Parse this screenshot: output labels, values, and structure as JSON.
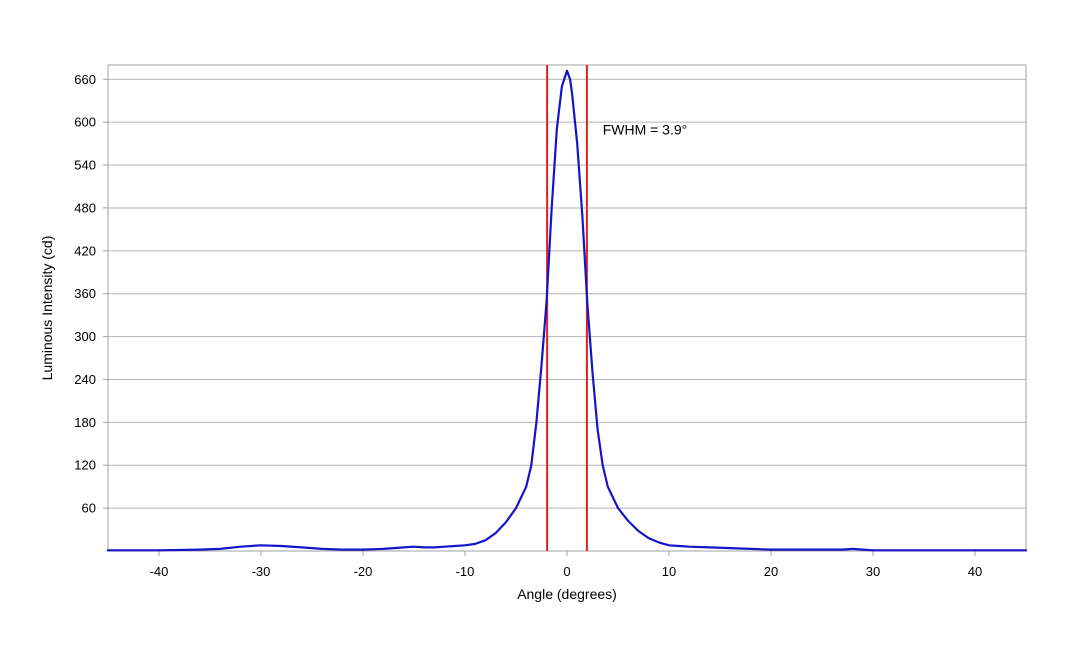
{
  "chart_data": {
    "type": "line",
    "title": "",
    "xlabel": "Angle (degrees)",
    "ylabel": "Luminous Intensity (cd)",
    "xlim": [
      -45,
      45
    ],
    "ylim": [
      0,
      680
    ],
    "x_ticks": [
      -40,
      -30,
      -20,
      -10,
      0,
      10,
      20,
      30,
      40
    ],
    "x_tick_labels": [
      "-40",
      "-30",
      "-20",
      "-10",
      "0",
      "10",
      "20",
      "30",
      "40"
    ],
    "y_ticks": [
      60,
      120,
      180,
      240,
      300,
      360,
      420,
      480,
      540,
      600,
      660
    ],
    "y_tick_labels": [
      "60",
      "120",
      "180",
      "240",
      "300",
      "360",
      "420",
      "480",
      "540",
      "600",
      "660"
    ],
    "grid": "horizontal",
    "legend": "none",
    "series": [
      {
        "color": "#1515c8",
        "x": [
          -45,
          -40,
          -36,
          -34,
          -32,
          -30,
          -28,
          -26,
          -24,
          -22,
          -20,
          -18,
          -17,
          -16,
          -15,
          -14,
          -13,
          -12,
          -11,
          -10,
          -9,
          -8,
          -7,
          -6,
          -5,
          -4,
          -3.5,
          -3,
          -2.5,
          -2,
          -1.5,
          -1,
          -0.5,
          0,
          0.3,
          0.5,
          1,
          1.5,
          2,
          2.5,
          3,
          3.5,
          4,
          5,
          6,
          7,
          8,
          9,
          10,
          11,
          12,
          14,
          16,
          18,
          20,
          22,
          24,
          26,
          27,
          28,
          29,
          30,
          35,
          40,
          45
        ],
        "y": [
          1,
          1,
          2,
          3,
          6,
          8,
          7,
          5,
          3,
          2,
          2,
          3,
          4,
          5,
          6,
          5,
          5,
          6,
          7,
          8,
          10,
          15,
          25,
          40,
          60,
          90,
          120,
          180,
          260,
          350,
          480,
          590,
          650,
          672,
          660,
          640,
          570,
          470,
          345,
          250,
          170,
          120,
          90,
          60,
          42,
          28,
          18,
          12,
          8,
          7,
          6,
          5,
          4,
          3,
          2,
          2,
          2,
          2,
          2,
          3,
          2,
          1,
          1,
          1,
          1
        ]
      }
    ],
    "vertical_markers": [
      {
        "x": -1.95,
        "color": "#e0201f"
      },
      {
        "x": 1.95,
        "color": "#e0201f"
      }
    ],
    "annotations": [
      {
        "text": "FWHM = 3.9°",
        "x": 3.5,
        "y": 590
      }
    ]
  }
}
